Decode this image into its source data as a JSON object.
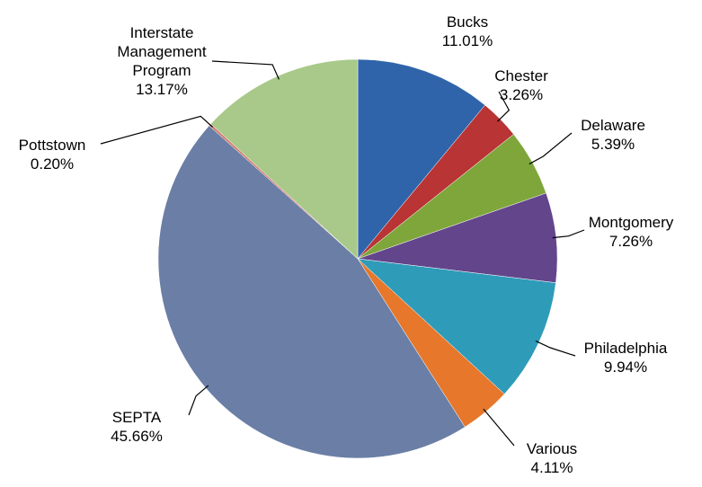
{
  "chart_data": {
    "type": "pie",
    "categories": [
      "Bucks",
      "Chester",
      "Delaware",
      "Montgomery",
      "Philadelphia",
      "Various",
      "SEPTA",
      "Pottstown",
      "Interstate Management Program"
    ],
    "values": [
      11.01,
      3.26,
      5.39,
      7.26,
      9.94,
      4.11,
      45.66,
      0.2,
      13.17
    ],
    "value_labels": [
      "11.01%",
      "3.26%",
      "5.39%",
      "7.26%",
      "9.94%",
      "4.11%",
      "45.66%",
      "0.20%",
      "13.17%"
    ],
    "colors": [
      "#2f64aa",
      "#b93434",
      "#7ea63a",
      "#63458c",
      "#2e9bb9",
      "#e6772b",
      "#6a7ea6",
      "#d27c70",
      "#a8c98a"
    ]
  }
}
